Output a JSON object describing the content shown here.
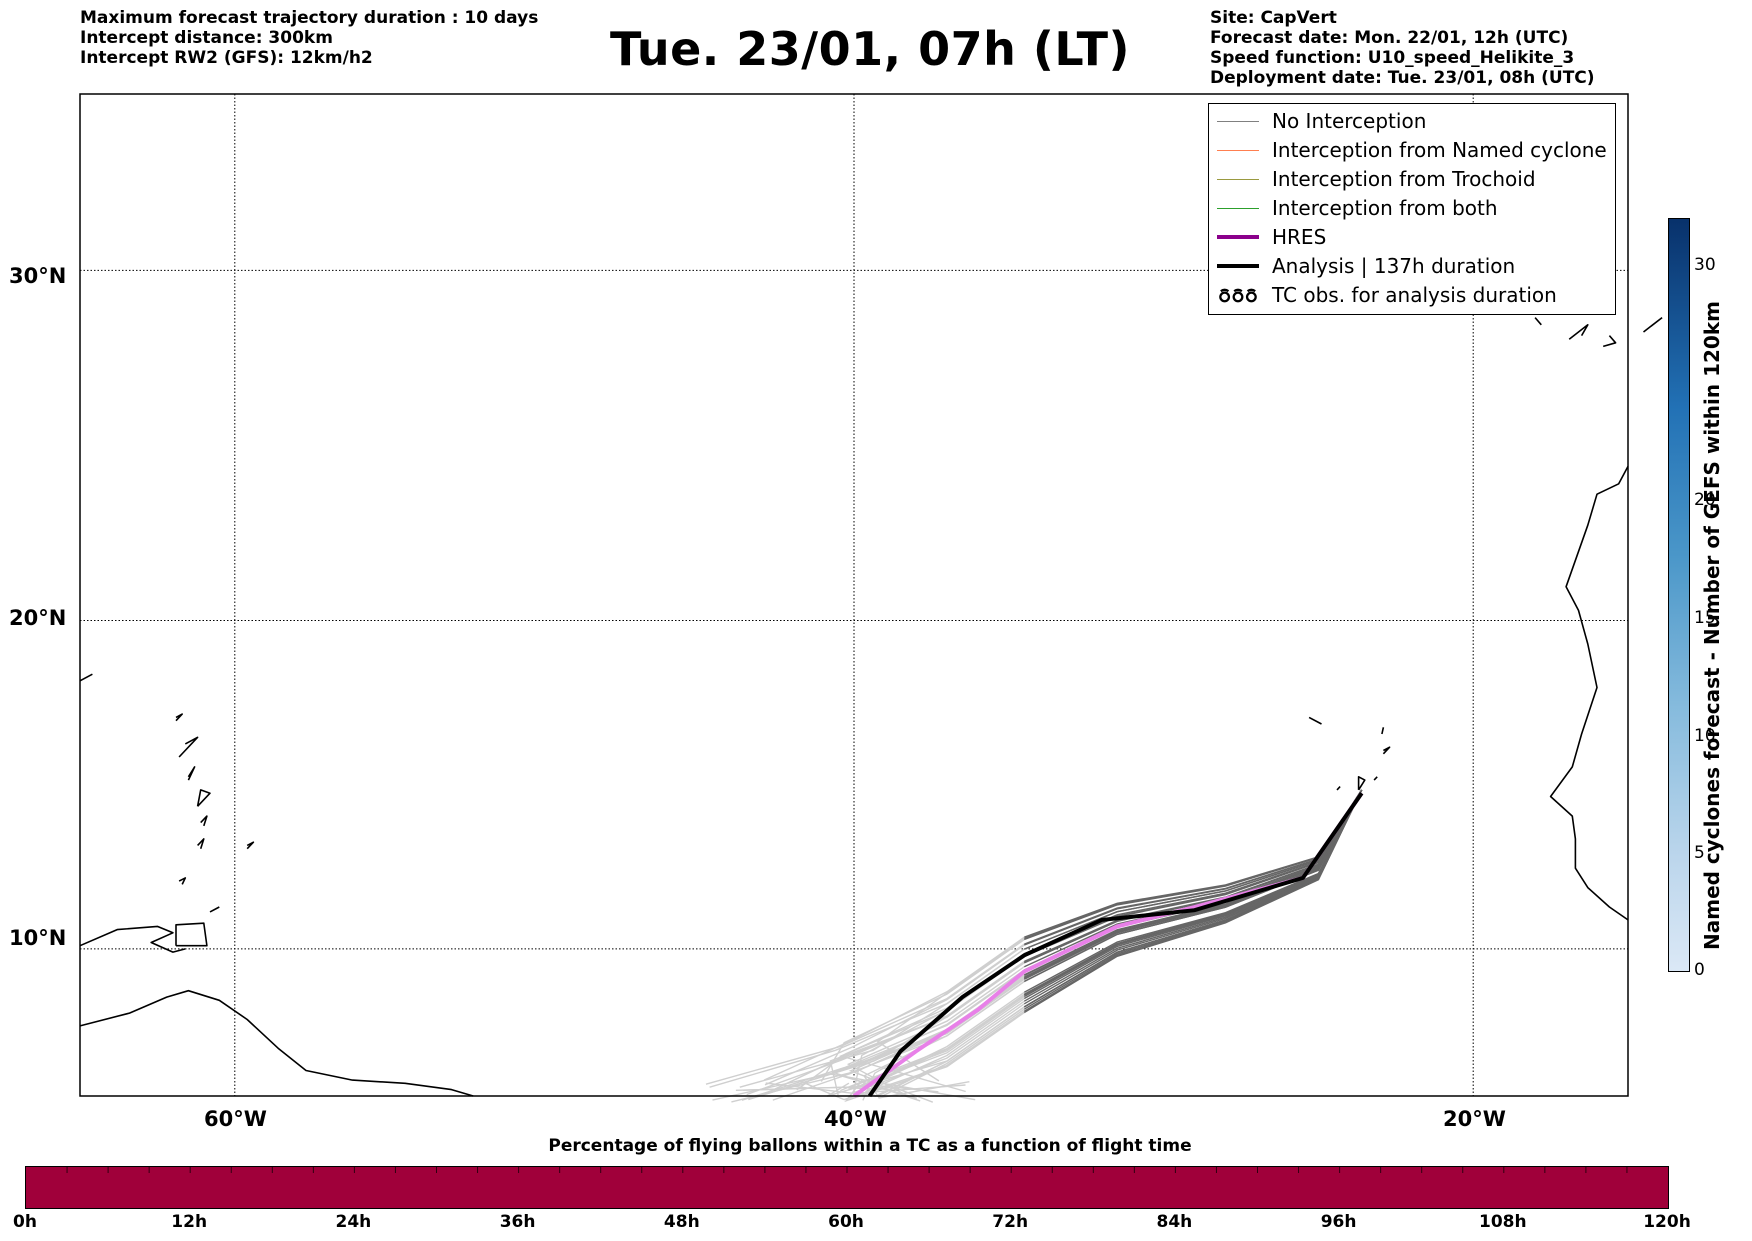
{
  "header": {
    "left_lines": [
      "Maximum forecast trajectory duration : 10 days",
      "Intercept distance: 300km",
      "Intercept RW2 (GFS):  12km/h2"
    ],
    "title": "Tue. 23/01, 07h (LT)",
    "right_lines": [
      "Site: CapVert",
      "Forecast date: Mon. 22/01, 12h (UTC)",
      "Speed function: U10_speed_Helikite_3",
      "Deployment date: Tue. 23/01, 08h (UTC)"
    ]
  },
  "map": {
    "lon_ticks": [
      "60°W",
      "40°W",
      "20°W"
    ],
    "lat_ticks": [
      "30°N",
      "20°N",
      "10°N"
    ],
    "lon_range": [
      -65,
      -15
    ],
    "lat_range": [
      5.4,
      34.7
    ],
    "grid": true,
    "colors": {
      "no_interception": "#808080",
      "named_cyclone": "#ff7f50",
      "trochoid": "#9a9a40",
      "both": "#2ca02c",
      "hres": "#8b008b",
      "analysis": "#000000",
      "coast": "#000000"
    }
  },
  "legend": {
    "items": [
      {
        "label": "No Interception",
        "style": "no_interception"
      },
      {
        "label": "Interception from Named cyclone",
        "style": "named_cyclone"
      },
      {
        "label": "Interception from Trochoid",
        "style": "trochoid"
      },
      {
        "label": "Interception from both",
        "style": "both"
      },
      {
        "label": "HRES",
        "style": "hres"
      },
      {
        "label": "Analysis | 137h duration",
        "style": "analysis"
      },
      {
        "label": "TC obs. for analysis duration",
        "style": "tc_obs"
      }
    ]
  },
  "colorbar": {
    "label": "Named cyclones forecast - Number of GEFS within 120km",
    "ticks": [
      "0",
      "5",
      "10",
      "15",
      "20",
      "30"
    ],
    "range": [
      0,
      32
    ]
  },
  "percent_bar": {
    "title": "Percentage of flying ballons within a TC as a function of flight time",
    "ticks": [
      "0h",
      "12h",
      "24h",
      "36h",
      "48h",
      "60h",
      "72h",
      "84h",
      "96h",
      "108h",
      "120h"
    ],
    "fill_color": "#a0003a"
  }
}
